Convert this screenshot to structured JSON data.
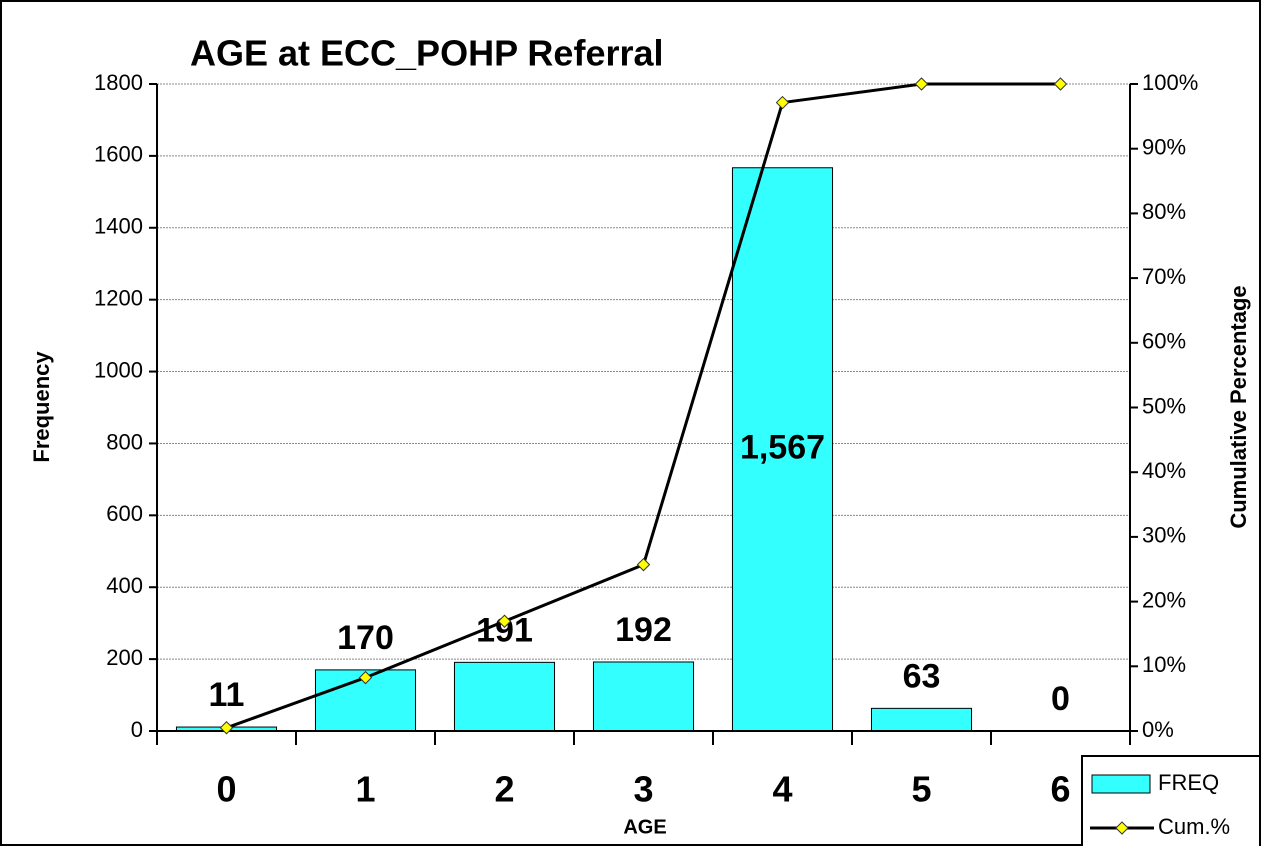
{
  "chart_data": {
    "type": "bar",
    "title": "AGE at ECC_POHP Referral",
    "x_label": "AGE",
    "y_label": "Frequency",
    "y2_label": "Cumulative Percentage",
    "categories": [
      "0",
      "1",
      "2",
      "3",
      "4",
      "5",
      "6"
    ],
    "series": [
      {
        "name": "FREQ",
        "type": "bar",
        "color": "#33ffff",
        "values": [
          11,
          170,
          191,
          192,
          1567,
          63,
          0
        ],
        "value_labels": [
          "11",
          "170",
          "191",
          "192",
          "1,567",
          "63",
          "0"
        ]
      },
      {
        "name": "Cum.%",
        "type": "line",
        "axis": "y2",
        "color": "#000000",
        "marker_color": "#ffff00",
        "values": [
          0.5,
          8.25,
          16.96,
          25.71,
          97.13,
          100,
          100
        ]
      }
    ],
    "ylim": [
      0,
      1800
    ],
    "yticks": [
      0,
      200,
      400,
      600,
      800,
      1000,
      1200,
      1400,
      1600,
      1800
    ],
    "y2lim": [
      0,
      100
    ],
    "y2ticks": [
      {
        "value": 0,
        "label": "0%"
      },
      {
        "value": 10,
        "label": "10%"
      },
      {
        "value": 20,
        "label": "20%"
      },
      {
        "value": 30,
        "label": "30%"
      },
      {
        "value": 40,
        "label": "40%"
      },
      {
        "value": 50,
        "label": "50%"
      },
      {
        "value": 60,
        "label": "60%"
      },
      {
        "value": 70,
        "label": "70%"
      },
      {
        "value": 80,
        "label": "80%"
      },
      {
        "value": 90,
        "label": "90%"
      },
      {
        "value": 100,
        "label": "100%"
      }
    ],
    "grid": true,
    "legend": "lower right"
  }
}
